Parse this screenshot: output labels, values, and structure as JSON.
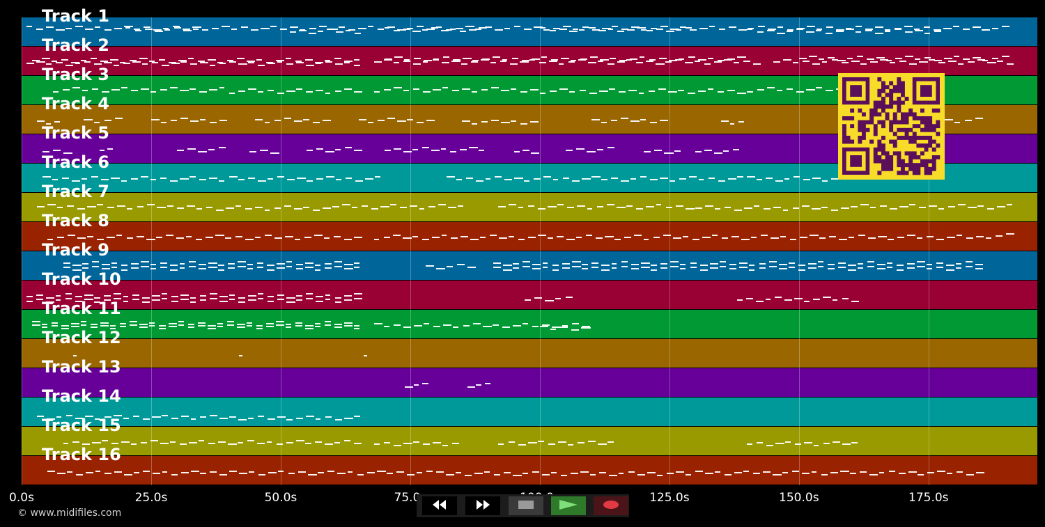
{
  "tracks": [
    {
      "label": "Track 1",
      "color": "#006699",
      "notes": [
        [
          1,
          191,
          0.65
        ],
        [
          20,
          35,
          0.6
        ],
        [
          50,
          66,
          0.55
        ],
        [
          70,
          90,
          0.6
        ],
        [
          100,
          130,
          0.6
        ],
        [
          140,
          178,
          0.55
        ],
        [
          180,
          187,
          0.65
        ]
      ]
    },
    {
      "label": "Track 2",
      "color": "#990033",
      "notes": [
        [
          1,
          66,
          0.45
        ],
        [
          2,
          66,
          0.55
        ],
        [
          68,
          143,
          0.5
        ],
        [
          70,
          140,
          0.6
        ],
        [
          145,
          192,
          0.5
        ],
        [
          150,
          191,
          0.62
        ]
      ]
    },
    {
      "label": "Track 3",
      "color": "#009933",
      "notes": [
        [
          6,
          40,
          0.55
        ],
        [
          40,
          66,
          0.5
        ],
        [
          68,
          100,
          0.55
        ],
        [
          100,
          140,
          0.5
        ],
        [
          140,
          178,
          0.55
        ]
      ]
    },
    {
      "label": "Track 4",
      "color": "#996600",
      "notes": [
        [
          3,
          8,
          0.45
        ],
        [
          12,
          20,
          0.5
        ],
        [
          25,
          40,
          0.5
        ],
        [
          45,
          60,
          0.5
        ],
        [
          65,
          80,
          0.5
        ],
        [
          85,
          100,
          0.45
        ],
        [
          110,
          125,
          0.5
        ],
        [
          135,
          140,
          0.45
        ],
        [
          178,
          186,
          0.5
        ]
      ]
    },
    {
      "label": "Track 5",
      "color": "#660099",
      "notes": [
        [
          4,
          10,
          0.45
        ],
        [
          15,
          18,
          0.5
        ],
        [
          30,
          40,
          0.5
        ],
        [
          44,
          50,
          0.45
        ],
        [
          55,
          66,
          0.5
        ],
        [
          70,
          90,
          0.5
        ],
        [
          95,
          100,
          0.45
        ],
        [
          105,
          115,
          0.5
        ],
        [
          120,
          128,
          0.45
        ],
        [
          130,
          139,
          0.45
        ]
      ]
    },
    {
      "label": "Track 6",
      "color": "#009999",
      "notes": [
        [
          4,
          40,
          0.5
        ],
        [
          40,
          70,
          0.5
        ],
        [
          82,
          110,
          0.5
        ],
        [
          110,
          140,
          0.5
        ],
        [
          140,
          158,
          0.5
        ]
      ]
    },
    {
      "label": "Track 7",
      "color": "#999900",
      "notes": [
        [
          3,
          30,
          0.55
        ],
        [
          30,
          60,
          0.5
        ],
        [
          60,
          86,
          0.55
        ],
        [
          92,
          130,
          0.55
        ],
        [
          130,
          160,
          0.5
        ],
        [
          160,
          192,
          0.55
        ]
      ]
    },
    {
      "label": "Track 8",
      "color": "#992200",
      "notes": [
        [
          5,
          66,
          0.5
        ],
        [
          68,
          120,
          0.5
        ],
        [
          120,
          186,
          0.5
        ],
        [
          186,
          192,
          0.55
        ]
      ]
    },
    {
      "label": "Track 9",
      "color": "#006699",
      "notes": [
        [
          8,
          66,
          0.45
        ],
        [
          8,
          66,
          0.6
        ],
        [
          78,
          88,
          0.5
        ],
        [
          91,
          186,
          0.45
        ],
        [
          91,
          186,
          0.6
        ]
      ]
    },
    {
      "label": "Track 10",
      "color": "#990033",
      "notes": [
        [
          1,
          66,
          0.35
        ],
        [
          1,
          66,
          0.5
        ],
        [
          97,
          107,
          0.4
        ],
        [
          138,
          162,
          0.38
        ]
      ]
    },
    {
      "label": "Track 11",
      "color": "#009933",
      "notes": [
        [
          2,
          66,
          0.45
        ],
        [
          2,
          66,
          0.55
        ],
        [
          68,
          110,
          0.48
        ],
        [
          100,
          110,
          0.4
        ]
      ]
    },
    {
      "label": "Track 12",
      "color": "#996600",
      "notes": [
        [
          10,
          11,
          0.45
        ],
        [
          42,
          43,
          0.45
        ],
        [
          66,
          67,
          0.45
        ]
      ]
    },
    {
      "label": "Track 13",
      "color": "#660099",
      "notes": [
        [
          74,
          79,
          0.45
        ],
        [
          86,
          91,
          0.45
        ]
      ]
    },
    {
      "label": "Track 14",
      "color": "#009999",
      "notes": [
        [
          3,
          40,
          0.35
        ],
        [
          40,
          66,
          0.32
        ]
      ]
    },
    {
      "label": "Track 15",
      "color": "#999900",
      "notes": [
        [
          8,
          66,
          0.48
        ],
        [
          68,
          85,
          0.45
        ],
        [
          92,
          115,
          0.47
        ],
        [
          140,
          162,
          0.45
        ]
      ]
    },
    {
      "label": "Track 16",
      "color": "#992200",
      "notes": [
        [
          5,
          40,
          0.45
        ],
        [
          40,
          80,
          0.45
        ],
        [
          80,
          130,
          0.42
        ],
        [
          130,
          186,
          0.45
        ]
      ]
    }
  ],
  "timeline": {
    "max_seconds": 196,
    "ticks": [
      {
        "value": 0,
        "label": "0.0s"
      },
      {
        "value": 25,
        "label": "25.0s"
      },
      {
        "value": 50,
        "label": "50.0s"
      },
      {
        "value": 75,
        "label": "75.0s"
      },
      {
        "value": 100,
        "label": "100.0s"
      },
      {
        "value": 125,
        "label": "125.0s"
      },
      {
        "value": 150,
        "label": "150.0s"
      },
      {
        "value": 175,
        "label": "175.0s"
      }
    ]
  },
  "copyright": "© www.midifiles.com",
  "qr": {
    "color_fg": "#5b0f5a",
    "color_bg": "#f7dc2a"
  },
  "transport": {
    "rewind": {
      "icon": "rewind-icon",
      "color": "#000000"
    },
    "forward": {
      "icon": "fast-forward-icon",
      "color": "#000000"
    },
    "stop": {
      "icon": "stop-icon",
      "color": "#3a3a3a"
    },
    "play": {
      "icon": "play-icon",
      "color": "#2f7a2a"
    },
    "record": {
      "icon": "record-icon",
      "color": "#4a1418"
    }
  }
}
